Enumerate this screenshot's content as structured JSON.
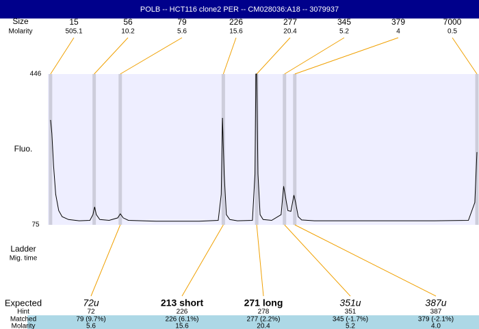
{
  "chart_data": {
    "type": "line",
    "title": "POLB -- HCT116 clone2 PER -- CM028036:A18 -- 3079937",
    "row_labels": {
      "size": "Size",
      "molarity": "Molarity",
      "fluo": "Fluo.",
      "ladder": "Ladder",
      "mig_time": "Mig. time",
      "expected": "Expected",
      "hint": "Hint",
      "matched": "Matched",
      "molarity_bottom": "Molarity"
    },
    "ylim": [
      75,
      446
    ],
    "yticks": [
      446,
      75
    ],
    "xlim": [
      0,
      100
    ],
    "x": [
      0.3,
      0.6,
      1.0,
      1.5,
      2.2,
      3.0,
      4.5,
      7,
      9.5,
      10.2,
      10.6,
      11.0,
      11.8,
      14,
      16.0,
      16.6,
      17.3,
      18.5,
      25,
      35,
      39.5,
      40.2,
      40.5,
      40.9,
      41.4,
      42.2,
      44,
      47.5,
      48.1,
      48.3,
      48.5,
      48.8,
      49.3,
      50,
      52,
      54.2,
      54.8,
      55.3,
      55.8,
      56.5,
      57.2,
      57.6,
      58.2,
      59,
      62,
      75,
      90,
      98,
      99.5,
      100
    ],
    "values": [
      333,
      300,
      220,
      150,
      110,
      95,
      88,
      85,
      86,
      100,
      119,
      100,
      88,
      86,
      92,
      102,
      92,
      86,
      84,
      84,
      86,
      150,
      338,
      200,
      100,
      88,
      85,
      86,
      200,
      446,
      446,
      200,
      100,
      88,
      86,
      100,
      170,
      140,
      110,
      108,
      148,
      130,
      95,
      87,
      85,
      85,
      85,
      86,
      130,
      254
    ],
    "color": "#000000",
    "ladder": {
      "sizes": [
        15,
        56,
        79,
        226,
        277,
        345,
        379,
        7000
      ],
      "molarity": [
        505.1,
        10.2,
        5.6,
        15.6,
        20.4,
        5.2,
        4,
        0.5
      ],
      "x": [
        0.3,
        10.5,
        16.6,
        40.7,
        48.5,
        55.0,
        57.4,
        100
      ]
    },
    "expected": {
      "labels": [
        "72u",
        "213 short",
        "271 long",
        "351u",
        "387u"
      ],
      "styles": [
        "italic",
        "bold",
        "bold",
        "italic",
        "italic"
      ],
      "hint": [
        72,
        226,
        278,
        351,
        387
      ],
      "matched": [
        "79 (9.7%)",
        "226 (6.1%)",
        "277 (2.2%)",
        "345 (-1.7%)",
        "379 (-2.1%)"
      ],
      "molarity": [
        {
          "value": 5.6,
          "label": "5.6"
        },
        {
          "value": 15.6,
          "label": "15.6"
        },
        {
          "value": 20.4,
          "label": "20.4"
        },
        {
          "value": 5.2,
          "label": "5.2"
        },
        {
          "value": 4.0,
          "label": "4.0"
        }
      ],
      "x": [
        16.6,
        40.7,
        48.5,
        55.0,
        57.4
      ]
    }
  }
}
